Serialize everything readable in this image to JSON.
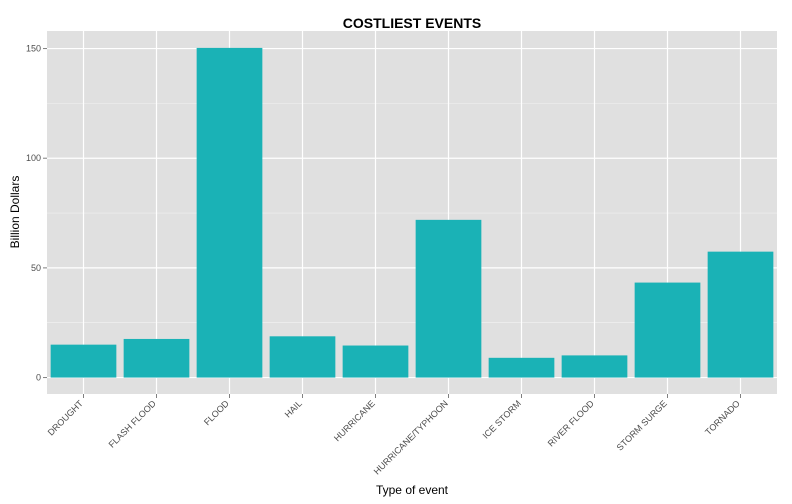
{
  "chart_data": {
    "type": "bar",
    "title": "COSTLIEST EVENTS",
    "xlabel": "Type of event",
    "ylabel": "Billion Dollars",
    "categories": [
      "DROUGHT",
      "FLASH FLOOD",
      "FLOOD",
      "HAIL",
      "HURRICANE",
      "HURRICANE/TYPHOON",
      "ICE STORM",
      "RIVER FLOOD",
      "STORM SURGE",
      "TORNADO"
    ],
    "values": [
      15.0,
      17.6,
      150.3,
      18.8,
      14.6,
      71.9,
      9.0,
      10.1,
      43.3,
      57.4
    ],
    "ylim": [
      -7.5,
      158
    ],
    "yticks": [
      0,
      50,
      100,
      150
    ],
    "grid": true,
    "bar_color": "#1ab2b6",
    "panel_color": "#e0e0e0"
  }
}
